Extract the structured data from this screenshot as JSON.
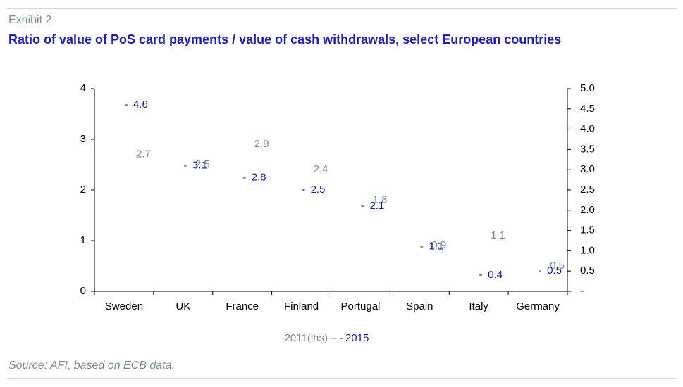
{
  "chart_data": {
    "type": "scatter",
    "subtitle": "Exhibit 2",
    "title": "Ratio of value of PoS card payments / value of cash withdrawals, select European countries",
    "source": "Source: AFI, based on ECB data.",
    "categories": [
      "Sweden",
      "UK",
      "France",
      "Finland",
      "Portugal",
      "Spain",
      "Italy",
      "Germany"
    ],
    "series": [
      {
        "name": "2011(lhs)",
        "color": "#7a8a8f",
        "values": [
          2.7,
          2.5,
          2.9,
          2.4,
          1.8,
          0.9,
          1.1,
          0.5
        ]
      },
      {
        "name": "2015",
        "color": "#1a1a8c",
        "axis": "y2",
        "values": [
          4.6,
          3.1,
          2.8,
          2.5,
          2.1,
          1.1,
          0.4,
          0.5
        ]
      }
    ],
    "ylim": [
      0,
      4
    ],
    "yticks": [
      0,
      1,
      2,
      3,
      4
    ],
    "y2lim": [
      0,
      5
    ],
    "y2ticks": [
      {
        "value": 0,
        "label": "-"
      },
      0.5,
      {
        "value": 1,
        "label": "1.0"
      },
      1.5,
      {
        "value": 2,
        "label": "2.0"
      },
      2.5,
      {
        "value": 3,
        "label": "3.0"
      },
      3.5,
      {
        "value": 4,
        "label": "4.0"
      },
      4.5,
      {
        "value": 5,
        "label": "5.0"
      }
    ]
  }
}
